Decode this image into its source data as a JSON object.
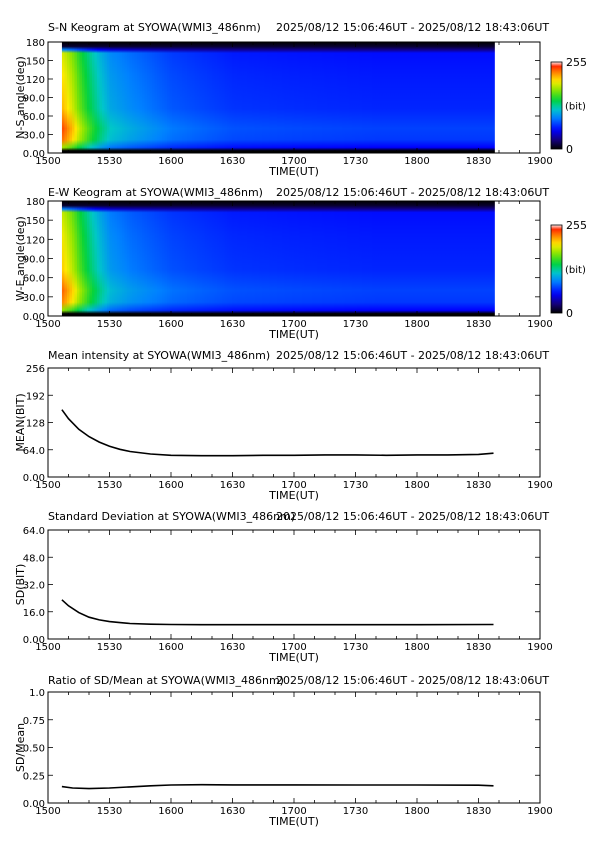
{
  "chart_data": [
    {
      "type": "heatmap",
      "title": "S-N Keogram at SYOWA(WMI3_486nm)",
      "time_range": "2025/08/12 15:06:46UT - 2025/08/12 18:43:06UT",
      "xlabel": "TIME(UT)",
      "ylabel": "N-S angle(deg)",
      "x_ticks": [
        "1500",
        "1530",
        "1600",
        "1630",
        "1700",
        "1730",
        "1800",
        "1830",
        "1900"
      ],
      "y_ticks": [
        "0.00",
        "30.0",
        "60.0",
        "90.0",
        "120",
        "150",
        "180"
      ],
      "ylim": [
        0,
        180
      ],
      "data_range_min": [
        6.8,
        18.1
      ],
      "colorbar": {
        "min_label": "0",
        "max_label": "255",
        "unit_label": "(bit)"
      },
      "intensity_profile": {
        "time_min": [
          6.8,
          9,
          12,
          15,
          20,
          25,
          30,
          40,
          60,
          90,
          120,
          160,
          200,
          217.3
        ],
        "bit": [
          210,
          200,
          185,
          165,
          140,
          120,
          105,
          95,
          80,
          70,
          68,
          66,
          66,
          66
        ]
      },
      "grid": false
    },
    {
      "type": "heatmap",
      "title": "E-W Keogram at SYOWA(WMI3_486nm)",
      "time_range": "2025/08/12 15:06:46UT - 2025/08/12 18:43:06UT",
      "xlabel": "TIME(UT)",
      "ylabel": "W-E angle(deg)",
      "x_ticks": [
        "1500",
        "1530",
        "1600",
        "1630",
        "1700",
        "1730",
        "1800",
        "1830",
        "1900"
      ],
      "y_ticks": [
        "0.00",
        "30.0",
        "60.0",
        "90.0",
        "120",
        "150",
        "180"
      ],
      "ylim": [
        0,
        180
      ],
      "data_range_min": [
        6.8,
        18.1
      ],
      "colorbar": {
        "min_label": "0",
        "max_label": "255",
        "unit_label": "(bit)"
      },
      "intensity_profile": {
        "time_min": [
          6.8,
          9,
          12,
          15,
          20,
          25,
          30,
          40,
          60,
          90,
          120,
          160,
          200,
          217.3
        ],
        "bit": [
          205,
          195,
          180,
          160,
          135,
          115,
          100,
          90,
          78,
          70,
          68,
          66,
          66,
          66
        ]
      },
      "grid": false
    },
    {
      "type": "line",
      "title": "Mean intensity at SYOWA(WMI3_486nm)",
      "time_range": "2025/08/12 15:06:46UT - 2025/08/12 18:43:06UT",
      "xlabel": "TIME(UT)",
      "ylabel": "MEAN(BIT)",
      "x_ticks": [
        "1500",
        "1530",
        "1600",
        "1630",
        "1700",
        "1730",
        "1800",
        "1830",
        "1900"
      ],
      "y_ticks": [
        "0.00",
        "64.0",
        "128",
        "192",
        "256"
      ],
      "ylim": [
        0,
        256
      ],
      "series": [
        {
          "x_min": [
            6.8,
            10,
            15,
            20,
            25,
            30,
            35,
            40,
            50,
            60,
            75,
            90,
            105,
            120,
            135,
            150,
            165,
            180,
            195,
            210,
            217.3
          ],
          "values": [
            158,
            137,
            112,
            95,
            82,
            72,
            65,
            60,
            54,
            51,
            50,
            50,
            51,
            51,
            52,
            52,
            51,
            52,
            52,
            53,
            56
          ]
        }
      ],
      "grid": false
    },
    {
      "type": "line",
      "title": "Standard Deviation at SYOWA(WMI3_486nm)",
      "time_range": "2025/08/12 15:06:46UT - 2025/08/12 18:43:06UT",
      "xlabel": "TIME(UT)",
      "ylabel": "SD(BIT)",
      "x_ticks": [
        "1500",
        "1530",
        "1600",
        "1630",
        "1700",
        "1730",
        "1800",
        "1830",
        "1900"
      ],
      "y_ticks": [
        "0.00",
        "16.0",
        "32.0",
        "48.0",
        "64.0"
      ],
      "ylim": [
        0,
        64
      ],
      "series": [
        {
          "x_min": [
            6.8,
            10,
            15,
            20,
            25,
            30,
            35,
            40,
            50,
            60,
            75,
            90,
            120,
            150,
            180,
            217.3
          ],
          "values": [
            23,
            19.5,
            15.5,
            12.8,
            11.2,
            10.2,
            9.6,
            9.1,
            8.7,
            8.5,
            8.4,
            8.4,
            8.4,
            8.4,
            8.4,
            8.5
          ]
        }
      ],
      "grid": false
    },
    {
      "type": "line",
      "title": "Ratio of SD/Mean at SYOWA(WMI3_486nm)",
      "time_range": "2025/08/12 15:06:46UT - 2025/08/12 18:43:06UT",
      "xlabel": "TIME(UT)",
      "ylabel": "SD/Mean",
      "x_ticks": [
        "1500",
        "1530",
        "1600",
        "1630",
        "1700",
        "1730",
        "1800",
        "1830",
        "1900"
      ],
      "y_ticks": [
        "0.00",
        "0.25",
        "0.50",
        "0.75",
        "1.0"
      ],
      "ylim": [
        0,
        1.0
      ],
      "series": [
        {
          "x_min": [
            6.8,
            12,
            20,
            30,
            40,
            50,
            60,
            75,
            90,
            120,
            150,
            180,
            210,
            217.3
          ],
          "values": [
            0.148,
            0.135,
            0.13,
            0.135,
            0.145,
            0.155,
            0.162,
            0.165,
            0.163,
            0.163,
            0.162,
            0.162,
            0.16,
            0.155
          ]
        }
      ],
      "grid": false
    }
  ]
}
